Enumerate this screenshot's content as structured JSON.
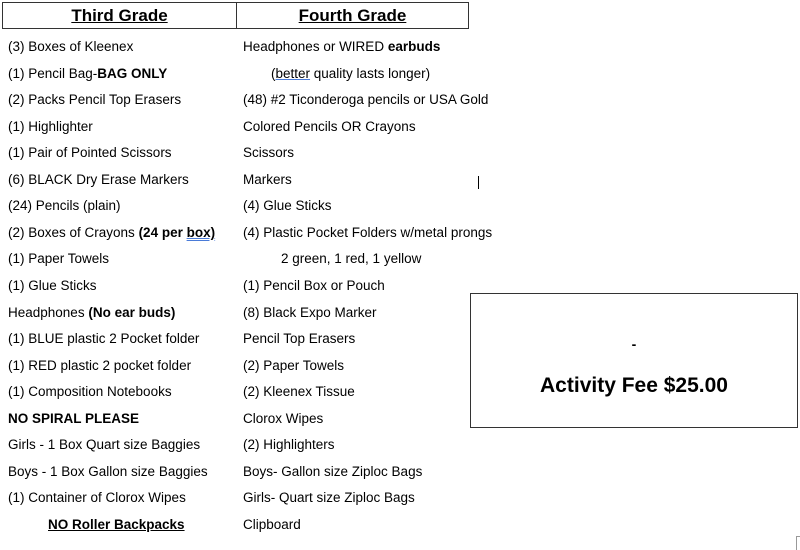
{
  "headers": {
    "third": "Third Grade",
    "fourth": "Fourth Grade"
  },
  "third_grade": [
    [
      {
        "t": "(3) Boxes of Kleenex"
      }
    ],
    [
      {
        "t": "(1) Pencil Bag-"
      },
      {
        "t": "BAG ONLY",
        "s": "b"
      }
    ],
    [
      {
        "t": "(2) Packs Pencil Top Erasers"
      }
    ],
    [
      {
        "t": "(1) Highlighter"
      }
    ],
    [
      {
        "t": "(1) Pair of Pointed Scissors"
      }
    ],
    [
      {
        "t": "(6) BLACK Dry Erase Markers"
      }
    ],
    [
      {
        "t": "(24) Pencils (plain)"
      }
    ],
    [
      {
        "t": "(2) Boxes of Crayons "
      },
      {
        "t": "(24 per ",
        "s": "b"
      },
      {
        "t": "box)",
        "s": "b dbl"
      }
    ],
    [
      {
        "t": "(1) Paper Towels"
      }
    ],
    [
      {
        "t": "(1) Glue Sticks"
      }
    ],
    [
      {
        "t": "Headphones "
      },
      {
        "t": "(No ear buds)",
        "s": "b"
      }
    ],
    [
      {
        "t": "(1) BLUE plastic 2 Pocket folder"
      }
    ],
    [
      {
        "t": "(1) RED plastic 2 pocket folder"
      }
    ],
    [
      {
        "t": "(1) Composition Notebooks"
      }
    ],
    [
      {
        "t": "NO SPIRAL PLEASE",
        "s": "b"
      }
    ],
    [
      {
        "t": "Girls - 1 Box Quart size Baggies"
      }
    ],
    [
      {
        "t": "Boys - 1 Box Gallon size Baggies"
      }
    ],
    [
      {
        "t": "(1) Container of Clorox Wipes"
      }
    ],
    [
      {
        "t": "NO Roller Backpacks",
        "s": "b u"
      }
    ]
  ],
  "fourth_grade": [
    [
      {
        "t": "Headphones or WIRED "
      },
      {
        "t": "earbuds",
        "s": "b"
      }
    ],
    [
      {
        "t": "("
      },
      {
        "t": "better",
        "s": "sq"
      },
      {
        "t": " quality lasts longer)"
      }
    ],
    [
      {
        "t": "(48) #2 Ticonderoga pencils or USA Gold"
      }
    ],
    [
      {
        "t": "Colored Pencils OR Crayons"
      }
    ],
    [
      {
        "t": "Scissors"
      }
    ],
    [
      {
        "t": "Markers"
      }
    ],
    [
      {
        "t": "(4) Glue Sticks"
      }
    ],
    [
      {
        "t": "(4) Plastic Pocket Folders w/metal prongs"
      }
    ],
    [
      {
        "t": "2 green, 1 red, 1 yellow"
      }
    ],
    [
      {
        "t": "(1) Pencil Box or Pouch"
      }
    ],
    [
      {
        "t": "(8) Black Expo Marker"
      }
    ],
    [
      {
        "t": "Pencil Top Erasers"
      }
    ],
    [
      {
        "t": "(2) Paper Towels"
      }
    ],
    [
      {
        "t": "(2) Kleenex Tissue"
      }
    ],
    [
      {
        "t": "Clorox Wipes"
      }
    ],
    [
      {
        "t": "(2) Highlighters"
      }
    ],
    [
      {
        "t": "Boys- Gallon size Ziploc Bags"
      }
    ],
    [
      {
        "t": "Girls- Quart size Ziploc Bags"
      }
    ],
    [
      {
        "t": "Clipboard"
      }
    ]
  ],
  "fee_box": {
    "dash": "-",
    "label": "Activity Fee $25.00"
  }
}
